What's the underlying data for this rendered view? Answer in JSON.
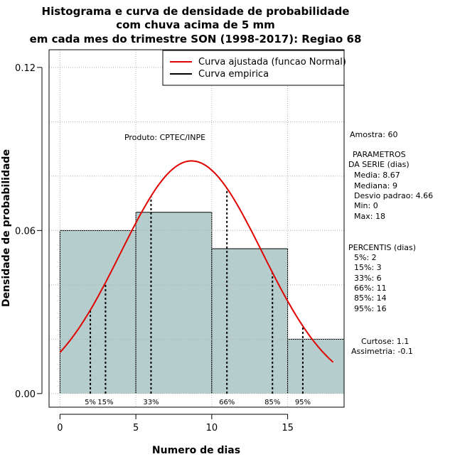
{
  "chart_data": {
    "type": "bar",
    "title_lines": [
      "Histograma e curva de densidade de probabilidade",
      "com chuva acima de 5 mm",
      "em cada mes do trimestre SON (1998-2017): Regiao 68"
    ],
    "xlabel": "Numero de dias",
    "ylabel": "Densidade de probabilidade",
    "xlim": [
      -0.72,
      18.72
    ],
    "ylim": [
      -0.005,
      0.1265
    ],
    "xticks": [
      0,
      5,
      10,
      15
    ],
    "yticks": [
      0.0,
      0.06,
      0.12
    ],
    "ytick_labels": [
      "0.00",
      "0.06",
      "0.12"
    ],
    "grid": true,
    "histogram": {
      "bin_edges": [
        0,
        5,
        10,
        15,
        18.72
      ],
      "density": [
        0.06,
        0.0667,
        0.0533,
        0.02
      ],
      "fill_color": "#b6cdcd"
    },
    "normal_curve": {
      "name": "Curva ajustada (funcao Normal)",
      "mean": 8.67,
      "sd": 4.66,
      "x_range": [
        0,
        18
      ],
      "color": "#e00000"
    },
    "empirical_curve": {
      "name": "Curva empirica",
      "color": "#000000"
    },
    "percentiles": [
      {
        "label": "5%",
        "x": 2
      },
      {
        "label": "15%",
        "x": 3
      },
      {
        "label": "33%",
        "x": 6
      },
      {
        "label": "66%",
        "x": 11
      },
      {
        "label": "85%",
        "x": 14
      },
      {
        "label": "95%",
        "x": 16
      }
    ],
    "legend_position": "top-right",
    "producer_note": "Produto: CPTEC/INPE"
  },
  "stats_panel": {
    "sample": "Amostra: 60",
    "params_title": "PARAMETROS",
    "params_subtitle": "DA SERIE (dias)",
    "params": [
      "Media: 8.67",
      "Mediana: 9",
      "Desvio padrao: 4.66",
      "Min: 0",
      "Max: 18"
    ],
    "percentis_title": "PERCENTIS (dias)",
    "percentis": [
      "5%: 2",
      "15%: 3",
      "33%: 6",
      "66%: 11",
      "85%: 14",
      "95%: 16"
    ],
    "curtose": "Curtose: 1.1",
    "assimetria": "Assimetria: -0.1"
  }
}
